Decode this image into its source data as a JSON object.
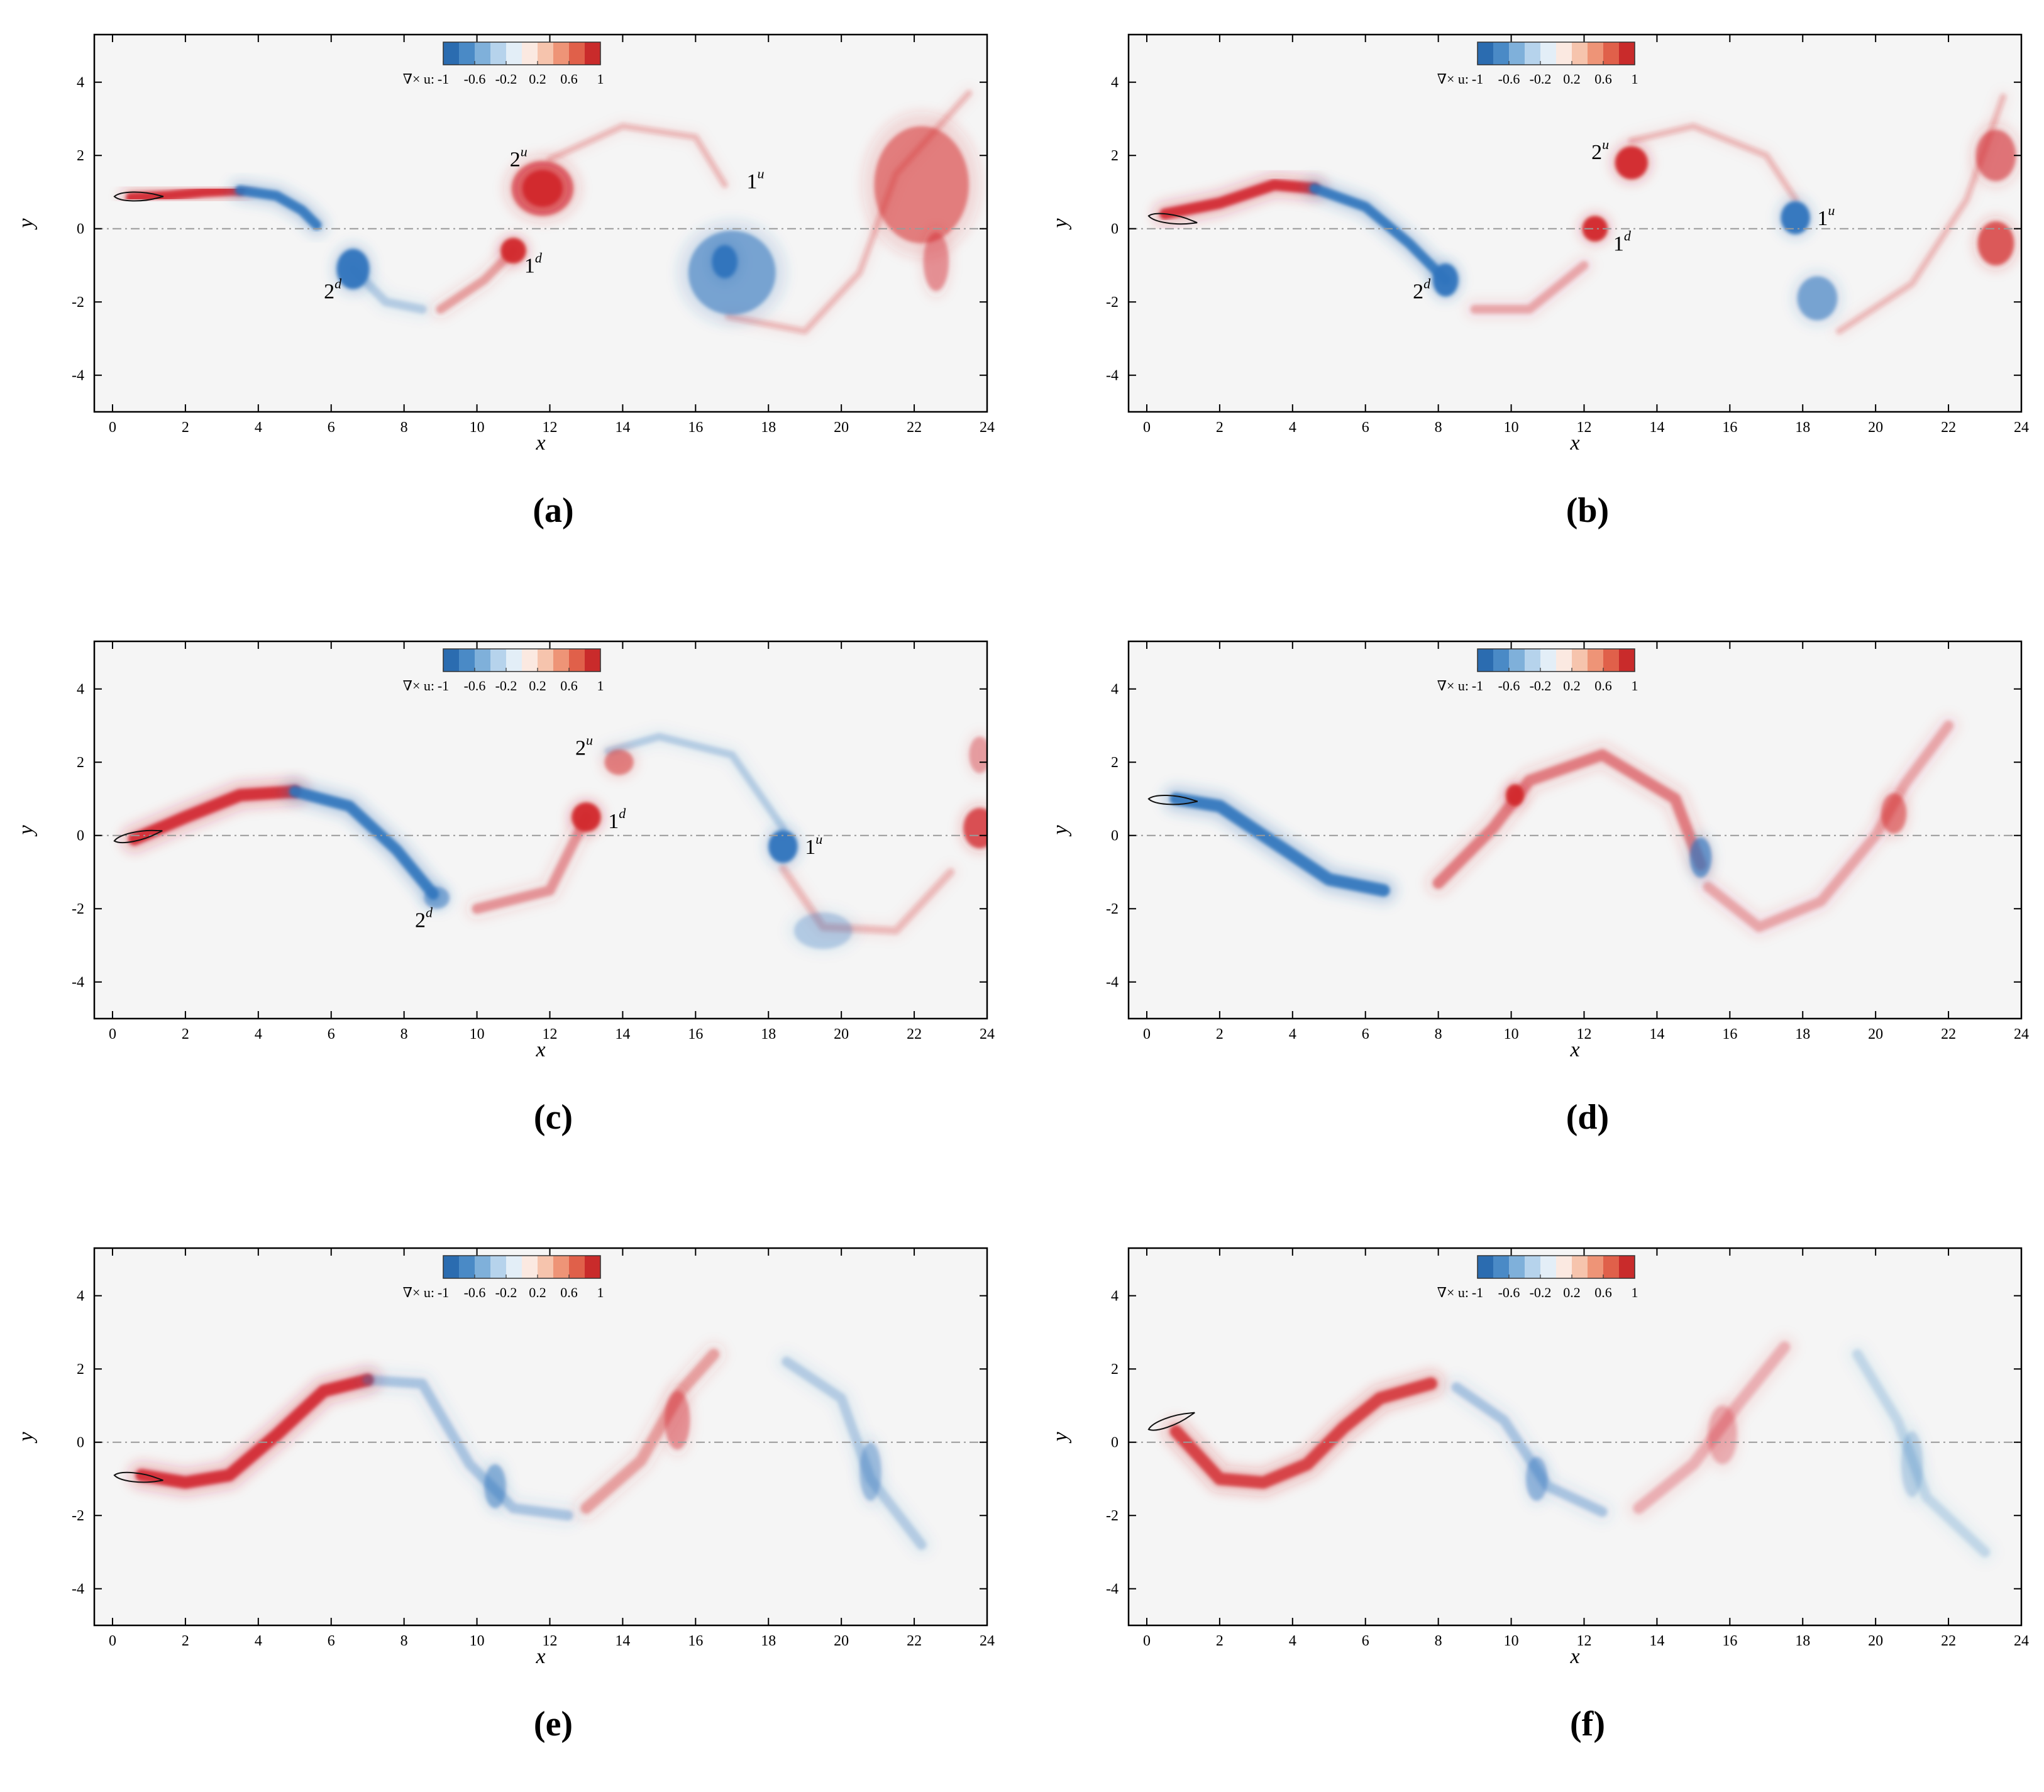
{
  "figure": {
    "colorbar": {
      "label": "∇× u:",
      "ticks": [
        "-1",
        "-0.6",
        "-0.2",
        "0.2",
        "0.6",
        "1"
      ],
      "colors": [
        "#2b6cb0",
        "#4a8ac6",
        "#7fb0da",
        "#b6d3ec",
        "#e3eef7",
        "#fbe9e1",
        "#f6c4ad",
        "#ee9477",
        "#e0604a",
        "#c92b2b"
      ]
    },
    "colors": {
      "positive": "#d2262c",
      "negative": "#2e74bd",
      "background": "#f5f5f5",
      "axis": "#000000"
    }
  },
  "chart_data": [
    {
      "type": "heatmap",
      "panel_label": "(a)",
      "xlabel": "x",
      "ylabel": "y",
      "xlim": [
        -0.5,
        24
      ],
      "ylim": [
        -5,
        5.3
      ],
      "xticks": [
        "0",
        "2",
        "4",
        "6",
        "8",
        "10",
        "12",
        "14",
        "16",
        "18",
        "20",
        "22",
        "24"
      ],
      "yticks": [
        "-4",
        "-2",
        "0",
        "2",
        "4"
      ],
      "annotations": [
        {
          "text": "2",
          "sup": "u",
          "x": 10.9,
          "y": 1.7
        },
        {
          "text": "1",
          "sup": "u",
          "x": 17.4,
          "y": 1.1
        },
        {
          "text": "1",
          "sup": "d",
          "x": 11.3,
          "y": -1.2
        },
        {
          "text": "2",
          "sup": "d",
          "x": 5.8,
          "y": -1.9
        }
      ]
    },
    {
      "type": "heatmap",
      "panel_label": "(b)",
      "xlabel": "x",
      "ylabel": "y",
      "xlim": [
        -0.5,
        24
      ],
      "ylim": [
        -5,
        5.3
      ],
      "xticks": [
        "0",
        "2",
        "4",
        "6",
        "8",
        "10",
        "12",
        "14",
        "16",
        "18",
        "20",
        "22",
        "24"
      ],
      "yticks": [
        "-4",
        "-2",
        "0",
        "2",
        "4"
      ],
      "annotations": [
        {
          "text": "2",
          "sup": "u",
          "x": 12.2,
          "y": 1.9
        },
        {
          "text": "1",
          "sup": "u",
          "x": 18.4,
          "y": 0.1
        },
        {
          "text": "1",
          "sup": "d",
          "x": 12.8,
          "y": -0.6
        },
        {
          "text": "2",
          "sup": "d",
          "x": 7.3,
          "y": -1.9
        }
      ]
    },
    {
      "type": "heatmap",
      "panel_label": "(c)",
      "xlabel": "x",
      "ylabel": "y",
      "xlim": [
        -0.5,
        24
      ],
      "ylim": [
        -5,
        5.3
      ],
      "xticks": [
        "0",
        "2",
        "4",
        "6",
        "8",
        "10",
        "12",
        "14",
        "16",
        "18",
        "20",
        "22",
        "24"
      ],
      "yticks": [
        "-4",
        "-2",
        "0",
        "2",
        "4"
      ],
      "annotations": [
        {
          "text": "2",
          "sup": "u",
          "x": 12.7,
          "y": 2.2
        },
        {
          "text": "1",
          "sup": "d",
          "x": 13.6,
          "y": 0.2
        },
        {
          "text": "1",
          "sup": "u",
          "x": 19.0,
          "y": -0.5
        },
        {
          "text": "2",
          "sup": "d",
          "x": 8.3,
          "y": -2.5
        }
      ]
    },
    {
      "type": "heatmap",
      "panel_label": "(d)",
      "xlabel": "x",
      "ylabel": "y",
      "xlim": [
        -0.5,
        24
      ],
      "ylim": [
        -5,
        5.3
      ],
      "xticks": [
        "0",
        "2",
        "4",
        "6",
        "8",
        "10",
        "12",
        "14",
        "16",
        "18",
        "20",
        "22",
        "24"
      ],
      "yticks": [
        "-4",
        "-2",
        "0",
        "2",
        "4"
      ],
      "annotations": []
    },
    {
      "type": "heatmap",
      "panel_label": "(e)",
      "xlabel": "x",
      "ylabel": "y",
      "xlim": [
        -0.5,
        24
      ],
      "ylim": [
        -5,
        5.3
      ],
      "xticks": [
        "0",
        "2",
        "4",
        "6",
        "8",
        "10",
        "12",
        "14",
        "16",
        "18",
        "20",
        "22",
        "24"
      ],
      "yticks": [
        "-4",
        "-2",
        "0",
        "2",
        "4"
      ],
      "annotations": []
    },
    {
      "type": "heatmap",
      "panel_label": "(f)",
      "xlabel": "x",
      "ylabel": "y",
      "xlim": [
        -0.5,
        24
      ],
      "ylim": [
        -5,
        5.3
      ],
      "xticks": [
        "0",
        "2",
        "4",
        "6",
        "8",
        "10",
        "12",
        "14",
        "16",
        "18",
        "20",
        "22",
        "24"
      ],
      "yticks": [
        "-4",
        "-2",
        "0",
        "2",
        "4"
      ],
      "annotations": []
    }
  ]
}
